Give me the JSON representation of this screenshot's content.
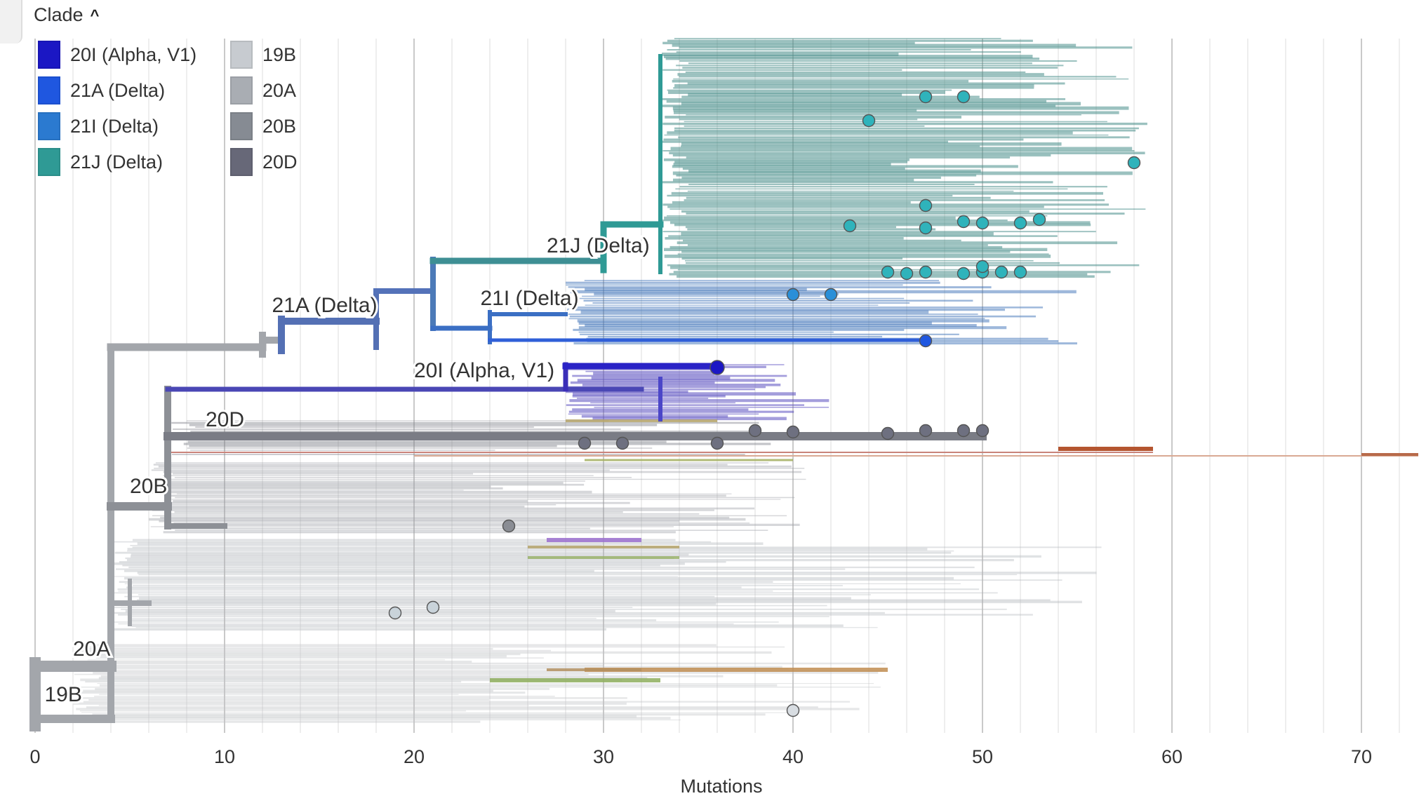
{
  "legend": {
    "title": "Clade",
    "items": [
      {
        "label": "20I (Alpha, V1)",
        "color": "#1b17c4"
      },
      {
        "label": "21A (Delta)",
        "color": "#1f57e0"
      },
      {
        "label": "21I (Delta)",
        "color": "#2b7ad0"
      },
      {
        "label": "21J (Delta)",
        "color": "#2f9a95"
      },
      {
        "label": "19B",
        "color": "#c7cbd0"
      },
      {
        "label": "20A",
        "color": "#a9adb3"
      },
      {
        "label": "20B",
        "color": "#868b93"
      },
      {
        "label": "20D",
        "color": "#676878"
      }
    ]
  },
  "chart_data": {
    "type": "phylogenetic-tree",
    "xlabel": "Mutations",
    "xlim": [
      0,
      73
    ],
    "xticks": [
      0,
      10,
      20,
      30,
      40,
      50,
      60,
      70
    ],
    "branch_labels": [
      {
        "label": "19B",
        "x": 0.5
      },
      {
        "label": "20A",
        "x": 2
      },
      {
        "label": "20B",
        "x": 5
      },
      {
        "label": "20D",
        "x": 9
      },
      {
        "label": "20I (Alpha, V1)",
        "x": 20
      },
      {
        "label": "21A (Delta)",
        "x": 12.5
      },
      {
        "label": "21I (Delta)",
        "x": 23.5
      },
      {
        "label": "21J (Delta)",
        "x": 27
      }
    ],
    "highlighted_tips": {
      "21J (Delta)": [
        47,
        49,
        44,
        58,
        47,
        43,
        47,
        49,
        50,
        52,
        53,
        45,
        46,
        47,
        49,
        50,
        50,
        51,
        52
      ],
      "21I (Delta)": [
        40,
        42
      ],
      "21A (Delta)": [
        47
      ],
      "20I (Alpha, V1)": [
        36
      ],
      "20D": [
        29,
        31,
        36,
        38,
        40,
        45,
        47,
        49,
        50
      ],
      "20B": [
        25
      ],
      "20A": [
        19,
        21
      ],
      "19B": [
        40
      ]
    }
  }
}
